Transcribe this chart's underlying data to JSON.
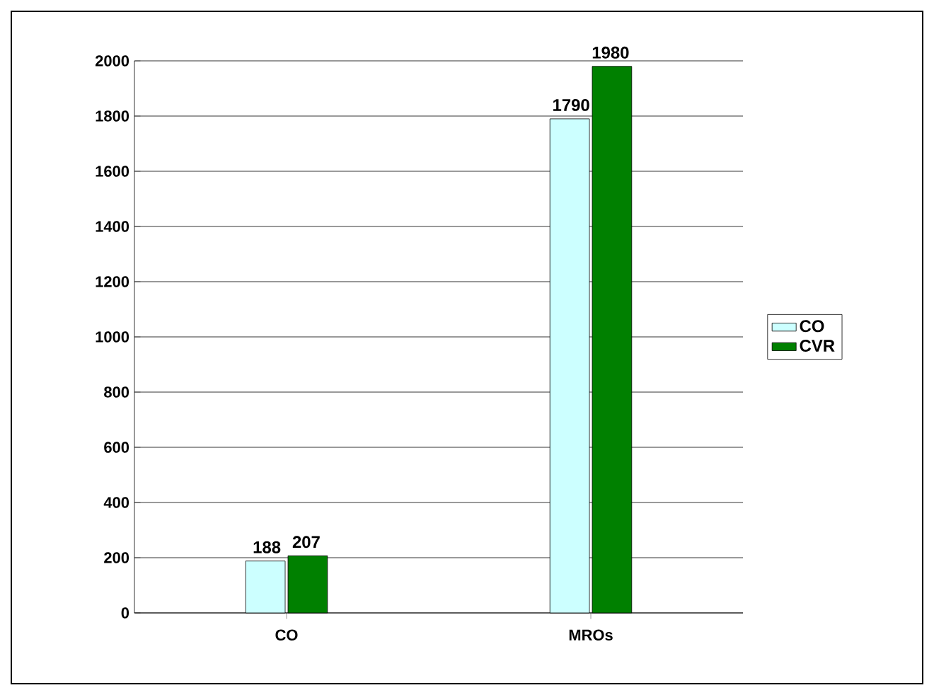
{
  "chart_data": {
    "type": "bar",
    "categories": [
      "CO",
      "MROs"
    ],
    "series": [
      {
        "name": "CO",
        "color": "#ccffff",
        "values": [
          188,
          1790
        ]
      },
      {
        "name": "CVR",
        "color": "#008000",
        "values": [
          207,
          1980
        ]
      }
    ],
    "ylim": [
      0,
      2000
    ],
    "yticks": [
      0,
      200,
      400,
      600,
      800,
      1000,
      1200,
      1400,
      1600,
      1800,
      2000
    ],
    "grid": "y",
    "legend": "right",
    "data_labels": true
  }
}
